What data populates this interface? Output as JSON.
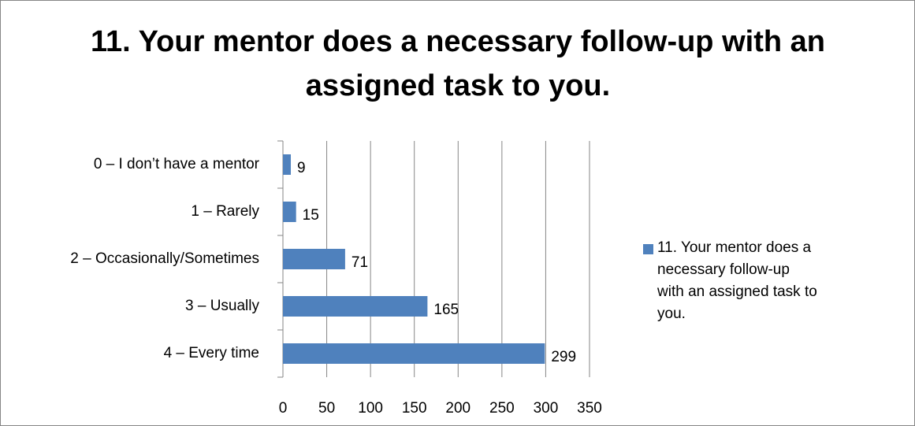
{
  "chart_data": {
    "type": "bar",
    "orientation": "horizontal",
    "title": "11. Your mentor does a necessary follow-up with an assigned task to you.",
    "categories": [
      "0 – I don’t have a mentor",
      "1 – Rarely",
      "2 – Occasionally/Sometimes",
      "3 – Usually",
      "4 – Every time"
    ],
    "series": [
      {
        "name": "11. Your mentor does a necessary follow-up with an assigned task to you.",
        "color": "#4f81bd",
        "values": [
          9,
          15,
          71,
          165,
          299
        ]
      }
    ],
    "xlim": [
      0,
      350
    ],
    "xticks": [
      0,
      50,
      100,
      150,
      200,
      250,
      300,
      350
    ],
    "grid": true,
    "legend": "right"
  }
}
